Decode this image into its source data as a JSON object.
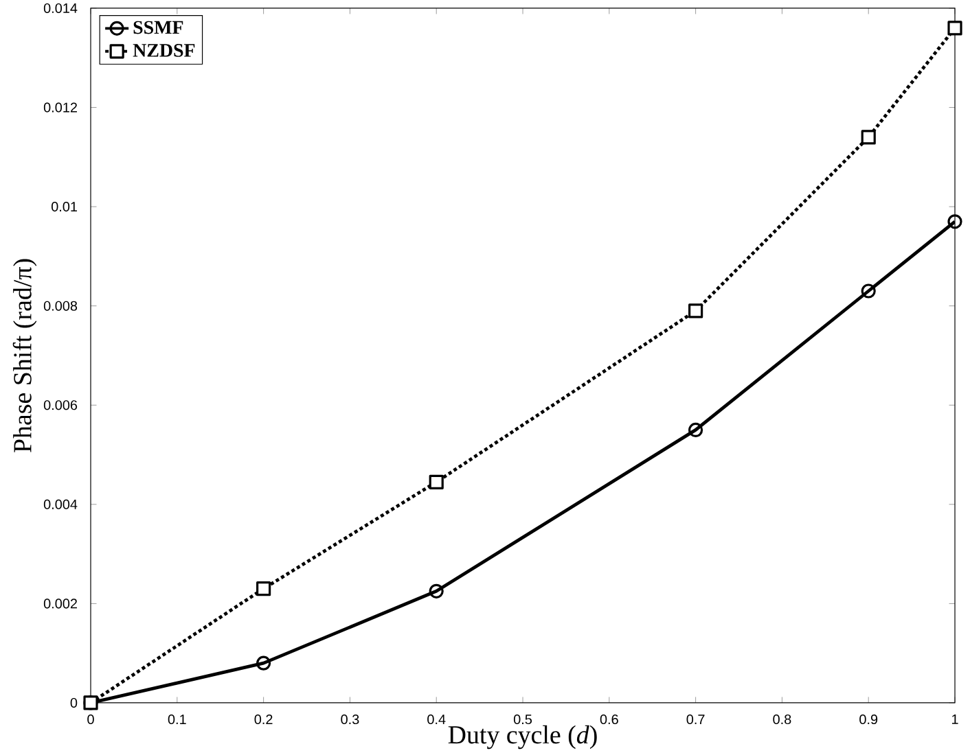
{
  "chart_data": {
    "type": "line",
    "xlabel": "Duty cycle (*d*)",
    "ylabel": "Phase Shift (rad/π)",
    "xlim": [
      0,
      1
    ],
    "ylim": [
      0,
      0.014
    ],
    "xticks": [
      0,
      0.1,
      0.2,
      0.3,
      0.4,
      0.5,
      0.6,
      0.7,
      0.8,
      0.9,
      1
    ],
    "yticks": [
      0,
      0.002,
      0.004,
      0.006,
      0.008,
      0.01,
      0.012,
      0.014
    ],
    "grid": false,
    "legend": "top left",
    "series": [
      {
        "name": "SSMF",
        "color": "#000000",
        "marker": "circle",
        "line_style": "solid",
        "x": [
          0,
          0.2,
          0.4,
          0.7,
          0.9,
          1
        ],
        "values": [
          0,
          0.0008,
          0.00225,
          0.0055,
          0.0083,
          0.0097
        ]
      },
      {
        "name": "NZDSF",
        "color": "#000000",
        "marker": "square",
        "line_style": "dotted",
        "x": [
          0,
          0.2,
          0.4,
          0.7,
          0.9,
          1
        ],
        "values": [
          0,
          0.0023,
          0.00445,
          0.0079,
          0.0114,
          0.0136
        ]
      }
    ]
  }
}
